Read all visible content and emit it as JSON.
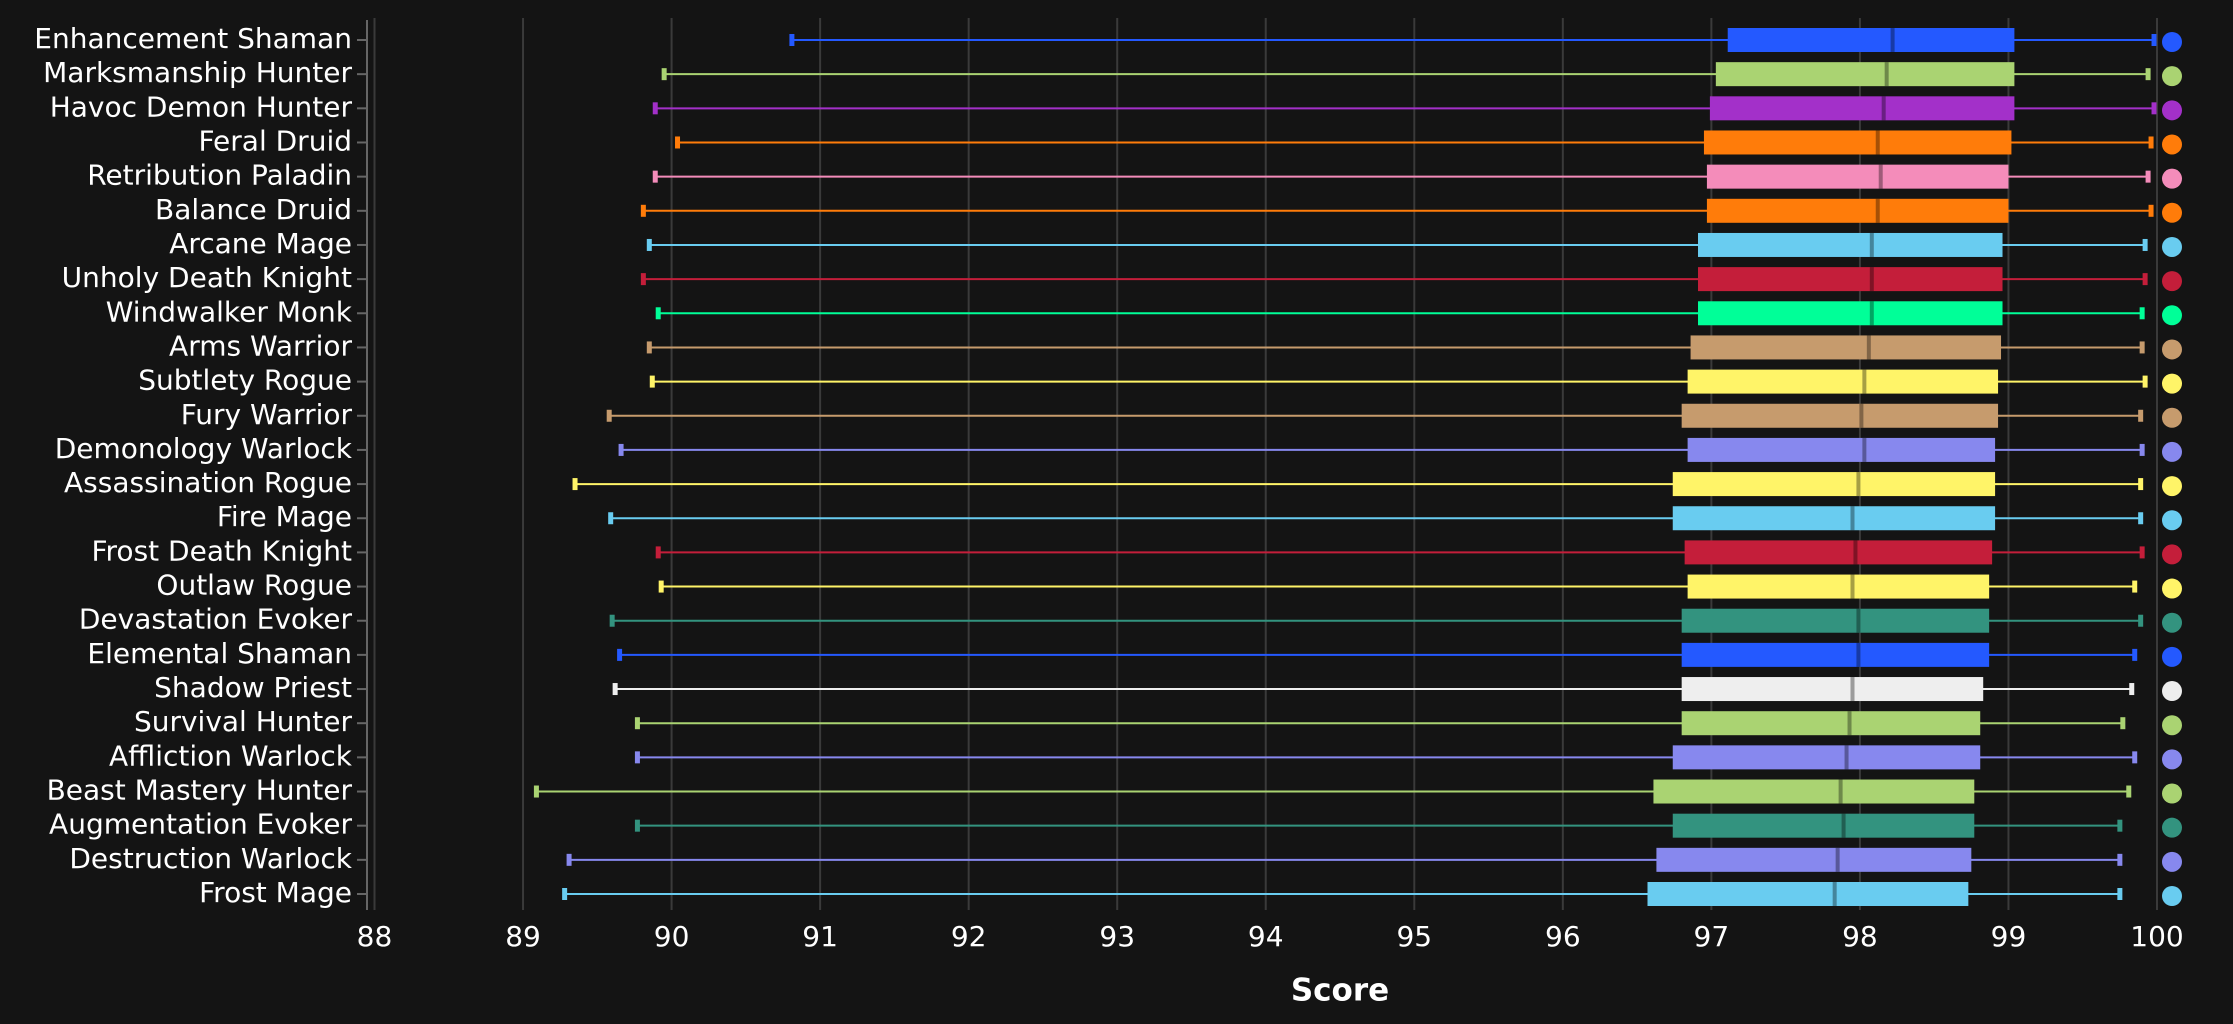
{
  "chart_data": {
    "type": "boxplot",
    "x_label": "Score",
    "xlim": [
      88,
      100
    ],
    "xticks": [
      88,
      89,
      90,
      91,
      92,
      93,
      94,
      95,
      96,
      97,
      98,
      99,
      100
    ],
    "grid": true,
    "categories": [
      "Enhancement Shaman",
      "Marksmanship Hunter",
      "Havoc Demon Hunter",
      "Feral Druid",
      "Retribution Paladin",
      "Balance Druid",
      "Arcane Mage",
      "Unholy Death Knight",
      "Windwalker Monk",
      "Arms Warrior",
      "Subtlety Rogue",
      "Fury Warrior",
      "Demonology Warlock",
      "Assassination Rogue",
      "Fire Mage",
      "Frost Death Knight",
      "Outlaw Rogue",
      "Devastation Evoker",
      "Elemental Shaman",
      "Shadow Priest",
      "Survival Hunter",
      "Affliction Warlock",
      "Beast Mastery Hunter",
      "Augmentation Evoker",
      "Destruction Warlock",
      "Frost Mage"
    ],
    "boxes": [
      {
        "color": "#2459ff",
        "values": [
          90.81,
          97.11,
          98.22,
          99.04,
          99.98
        ],
        "outlier": 100
      },
      {
        "color": "#aad372",
        "values": [
          89.95,
          97.03,
          98.18,
          99.04,
          99.94
        ],
        "outlier": 100
      },
      {
        "color": "#a330c9",
        "values": [
          89.89,
          96.99,
          98.16,
          99.04,
          99.98
        ],
        "outlier": 100
      },
      {
        "color": "#ff7c0a",
        "values": [
          90.04,
          96.95,
          98.12,
          99.02,
          99.96
        ],
        "outlier": 100
      },
      {
        "color": "#f48cba",
        "values": [
          89.89,
          96.97,
          98.14,
          99.0,
          99.94
        ],
        "outlier": 100
      },
      {
        "color": "#ff7c0a",
        "values": [
          89.81,
          96.97,
          98.12,
          99.0,
          99.96
        ],
        "outlier": 100
      },
      {
        "color": "#69ccf0",
        "values": [
          89.85,
          96.91,
          98.08,
          98.96,
          99.92
        ],
        "outlier": 100
      },
      {
        "color": "#c41e3a",
        "values": [
          89.81,
          96.91,
          98.08,
          98.96,
          99.92
        ],
        "outlier": 100
      },
      {
        "color": "#00ff98",
        "values": [
          89.91,
          96.91,
          98.08,
          98.96,
          99.9
        ],
        "outlier": 100
      },
      {
        "color": "#c69b6d",
        "values": [
          89.85,
          96.86,
          98.06,
          98.95,
          99.9
        ],
        "outlier": 100
      },
      {
        "color": "#fff468",
        "values": [
          89.87,
          96.84,
          98.03,
          98.93,
          99.92
        ],
        "outlier": 100
      },
      {
        "color": "#c69b6d",
        "values": [
          89.58,
          96.8,
          98.01,
          98.93,
          99.89
        ],
        "outlier": 100
      },
      {
        "color": "#8788ee",
        "values": [
          89.66,
          96.84,
          98.03,
          98.91,
          99.9
        ],
        "outlier": 100
      },
      {
        "color": "#fff468",
        "values": [
          89.35,
          96.74,
          97.99,
          98.91,
          99.89
        ],
        "outlier": 100
      },
      {
        "color": "#69ccf0",
        "values": [
          89.59,
          96.74,
          97.95,
          98.91,
          99.89
        ],
        "outlier": 100
      },
      {
        "color": "#c41e3a",
        "values": [
          89.91,
          96.82,
          97.97,
          98.89,
          99.9
        ],
        "outlier": 100
      },
      {
        "color": "#fff468",
        "values": [
          89.93,
          96.84,
          97.95,
          98.87,
          99.85
        ],
        "outlier": 100
      },
      {
        "color": "#33937f",
        "values": [
          89.6,
          96.8,
          97.99,
          98.87,
          99.89
        ],
        "outlier": 100
      },
      {
        "color": "#2459ff",
        "values": [
          89.65,
          96.8,
          97.99,
          98.87,
          99.85
        ],
        "outlier": 100
      },
      {
        "color": "#eeeeee",
        "values": [
          89.62,
          96.8,
          97.95,
          98.83,
          99.83
        ],
        "outlier": 100
      },
      {
        "color": "#aad372",
        "values": [
          89.77,
          96.8,
          97.93,
          98.81,
          99.77
        ],
        "outlier": 100
      },
      {
        "color": "#8788ee",
        "values": [
          89.77,
          96.74,
          97.91,
          98.81,
          99.85
        ],
        "outlier": 100
      },
      {
        "color": "#aad372",
        "values": [
          89.09,
          96.61,
          97.87,
          98.77,
          99.81
        ],
        "outlier": 100
      },
      {
        "color": "#33937f",
        "values": [
          89.77,
          96.74,
          97.89,
          98.77,
          99.75
        ],
        "outlier": 100
      },
      {
        "color": "#8788ee",
        "values": [
          89.31,
          96.63,
          97.85,
          98.75,
          99.75
        ],
        "outlier": 100
      },
      {
        "color": "#69ccf0",
        "values": [
          89.28,
          96.57,
          97.83,
          98.73,
          99.75
        ],
        "outlier": 100
      }
    ]
  }
}
